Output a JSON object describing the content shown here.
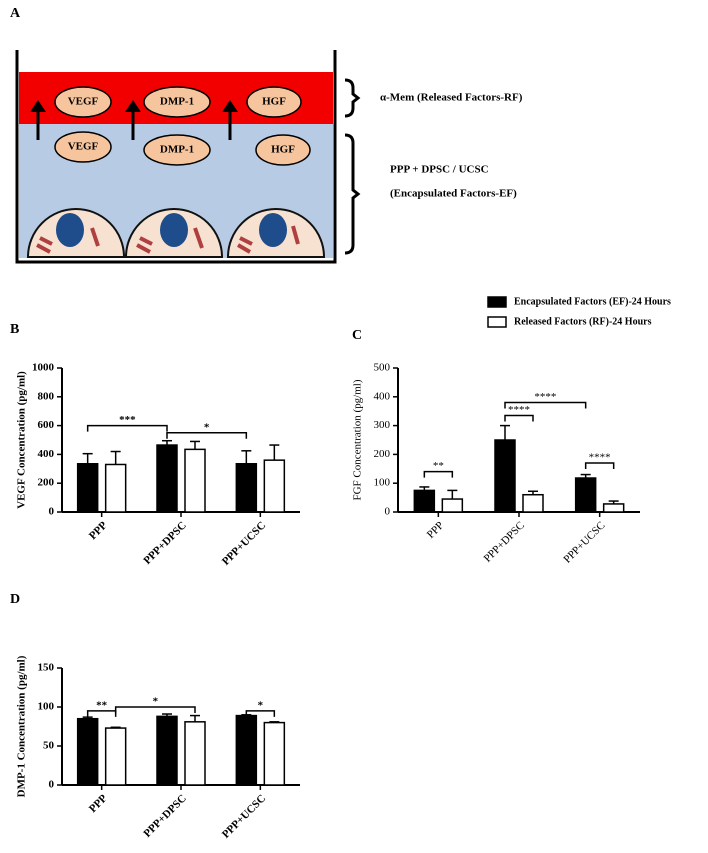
{
  "panels": [
    "A",
    "B",
    "C",
    "D"
  ],
  "diagram": {
    "released_layer": [
      "VEGF",
      "DMP-1",
      "HGF"
    ],
    "encapsulated_layer": [
      "VEGF",
      "DMP-1",
      "HGF"
    ],
    "released_label": "α-Mem (Released Factors-RF)",
    "encapsulated_label": [
      "PPP + DPSC / UCSC",
      "(Encapsulated Factors-EF)"
    ]
  },
  "chart_data": [
    {
      "type": "bar",
      "ylabel": "VEGF Concentration (pg/ml)",
      "categories": [
        "PPP",
        "PPP+DPSC",
        "PPP+UCSC"
      ],
      "series": [
        {
          "name": "Encapsulated Factors (EF)-24 Hours",
          "color": "#000000",
          "values": [
            335,
            465,
            335
          ],
          "errors": [
            70,
            30,
            90
          ]
        },
        {
          "name": "Released Factors (RF)-24 Hours",
          "color": "#ffffff",
          "values": [
            330,
            435,
            360
          ],
          "errors": [
            90,
            55,
            105
          ]
        }
      ],
      "ylim": [
        0,
        1000
      ],
      "yticks": [
        0,
        200,
        400,
        600,
        800,
        1000
      ],
      "significance": [
        {
          "label": "***",
          "between": [
            [
              0,
              0
            ],
            [
              0,
              1
            ]
          ],
          "y": 600
        },
        {
          "label": "*",
          "between": [
            [
              0,
              1
            ],
            [
              0,
              2
            ]
          ],
          "y": 550
        }
      ]
    },
    {
      "type": "bar",
      "ylabel": "FGF Concentration (pg/ml)",
      "categories": [
        "PPP",
        "PPP+DPSC",
        "PPP+UCSC"
      ],
      "series": [
        {
          "color": "#000000",
          "values": [
            75,
            250,
            118
          ],
          "errors": [
            12,
            50,
            12
          ]
        },
        {
          "color": "#ffffff",
          "values": [
            45,
            60,
            28
          ],
          "errors": [
            30,
            12,
            10
          ]
        }
      ],
      "ylim": [
        0,
        500
      ],
      "yticks": [
        0,
        100,
        200,
        300,
        400,
        500
      ],
      "significance": [
        {
          "label": "**",
          "between": [
            [
              0,
              0
            ],
            [
              1,
              0
            ]
          ],
          "y": 140
        },
        {
          "label": "****",
          "between": [
            [
              0,
              1
            ],
            [
              1,
              1
            ]
          ],
          "y": 335
        },
        {
          "label": "****",
          "between": [
            [
              0,
              1
            ],
            [
              0,
              2
            ]
          ],
          "y": 380
        },
        {
          "label": "****",
          "between": [
            [
              0,
              2
            ],
            [
              1,
              2
            ]
          ],
          "y": 170
        }
      ]
    },
    {
      "type": "bar",
      "ylabel": "DMP-1 Concentration (pg/ml)",
      "categories": [
        "PPP",
        "PPP+DPSC",
        "PPP+UCSC"
      ],
      "series": [
        {
          "color": "#000000",
          "values": [
            85,
            88,
            89
          ],
          "errors": [
            2,
            3,
            1
          ]
        },
        {
          "color": "#ffffff",
          "values": [
            73,
            81,
            80
          ],
          "errors": [
            1,
            8,
            1
          ]
        }
      ],
      "ylim": [
        0,
        150
      ],
      "yticks": [
        0,
        50,
        100,
        150
      ],
      "significance": [
        {
          "label": "**",
          "between": [
            [
              0,
              0
            ],
            [
              1,
              0
            ]
          ],
          "y": 95
        },
        {
          "label": "*",
          "between": [
            [
              1,
              0
            ],
            [
              1,
              1
            ]
          ],
          "y": 100
        },
        {
          "label": "*",
          "between": [
            [
              0,
              2
            ],
            [
              1,
              2
            ]
          ],
          "y": 95
        }
      ]
    }
  ]
}
